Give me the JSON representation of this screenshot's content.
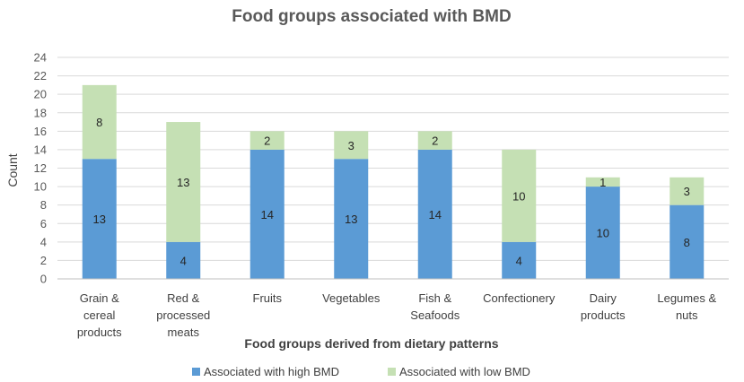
{
  "chart_data": {
    "type": "bar",
    "stacked": true,
    "title": "Food groups associated with BMD",
    "xlabel": "Food groups derived from dietary patterns",
    "ylabel": "Count",
    "ylim": [
      0,
      24
    ],
    "yticks": [
      0,
      2,
      4,
      6,
      8,
      10,
      12,
      14,
      16,
      18,
      20,
      22,
      24
    ],
    "grid": true,
    "legend_position": "bottom",
    "categories": [
      [
        "Grain &",
        "cereal",
        "products"
      ],
      [
        "Red &",
        "processed",
        "meats"
      ],
      [
        "Fruits"
      ],
      [
        "Vegetables"
      ],
      [
        "Fish &",
        "Seafoods"
      ],
      [
        "Confectionery"
      ],
      [
        "Dairy",
        "products"
      ],
      [
        "Legumes &",
        "nuts"
      ]
    ],
    "series": [
      {
        "name": "Associated with high BMD",
        "color": "#5b9bd5",
        "values": [
          13,
          4,
          14,
          13,
          14,
          4,
          10,
          8
        ]
      },
      {
        "name": "Associated with low BMD",
        "color": "#c5e0b4",
        "values": [
          8,
          13,
          2,
          3,
          2,
          10,
          1,
          3
        ]
      }
    ]
  }
}
